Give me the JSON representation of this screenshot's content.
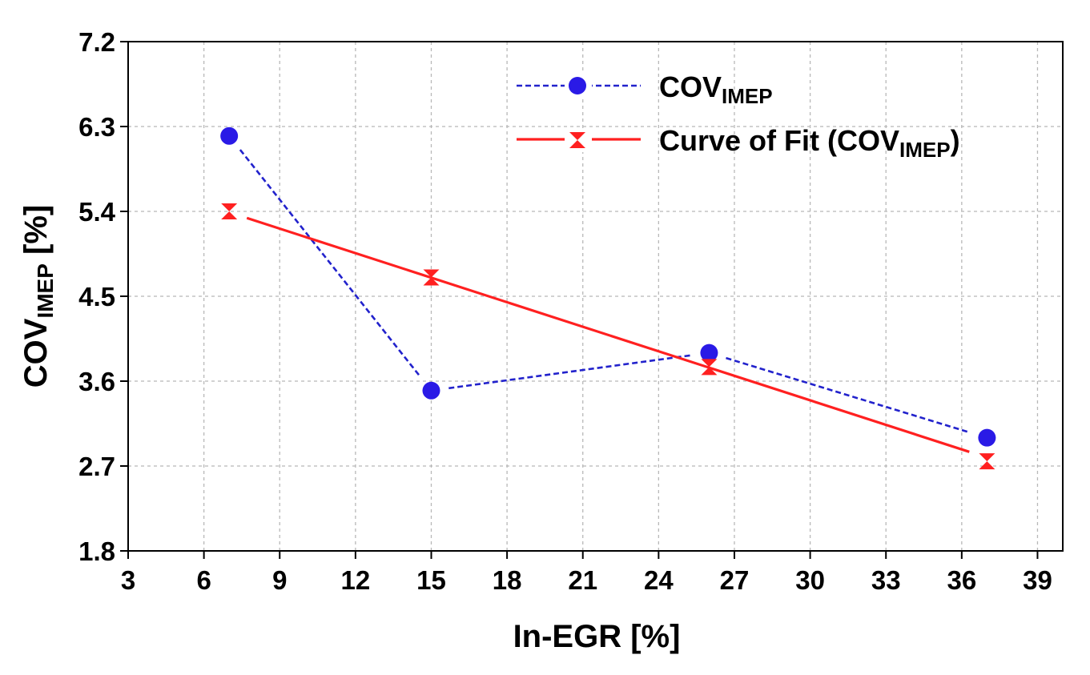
{
  "chart_data": {
    "type": "line",
    "xlabel": "In-EGR [%]",
    "ylabel": {
      "base": "COV",
      "sub": "IMEP",
      "suffix": " [%]"
    },
    "xlim": [
      3,
      40
    ],
    "ylim": [
      1.8,
      7.2
    ],
    "xticks": [
      3,
      6,
      9,
      12,
      15,
      18,
      21,
      24,
      27,
      30,
      33,
      36,
      39
    ],
    "yticks": [
      "1.8",
      "2.7",
      "3.6",
      "4.5",
      "5.4",
      "6.3",
      "7.2"
    ],
    "grid": true,
    "legend_position": "top-right",
    "series": [
      {
        "name": {
          "base": "COV",
          "sub": "IMEP",
          "suffix": ""
        },
        "style": "dashed",
        "marker": "circle",
        "color": "#2222cc",
        "marker_color": "#2a1ae6",
        "x": [
          7,
          15,
          26,
          37
        ],
        "y": [
          6.2,
          3.5,
          3.9,
          3.0
        ]
      },
      {
        "name": {
          "base": "Curve of Fit (COV",
          "sub": "IMEP",
          "suffix": ")"
        },
        "style": "solid",
        "marker": "hourglass",
        "color": "#ff2020",
        "marker_color": "#ff2020",
        "x": [
          7,
          15,
          26,
          37
        ],
        "y": [
          5.4,
          4.7,
          3.75,
          2.75
        ],
        "fit_line": {
          "x": [
            7.7,
            36.3
          ],
          "y": [
            5.33,
            2.85
          ]
        }
      }
    ]
  }
}
